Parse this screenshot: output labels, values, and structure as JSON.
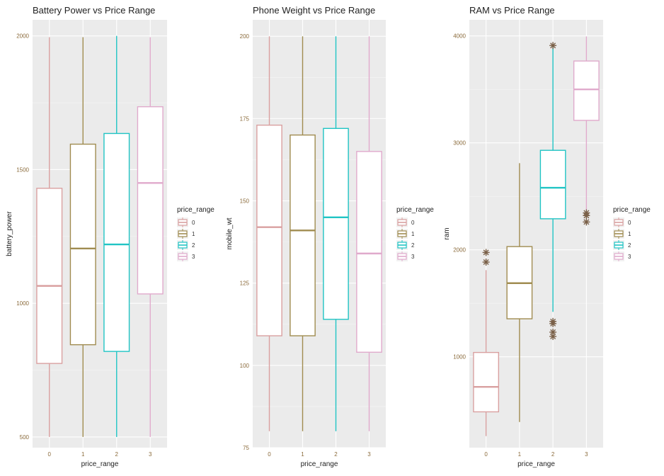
{
  "chart_data": [
    {
      "type": "boxplot",
      "title": "Battery Power vs Price Range",
      "xlabel": "price_range",
      "ylabel": "battery_power",
      "categories": [
        "0",
        "1",
        "2",
        "3"
      ],
      "ylim": [
        460,
        2060
      ],
      "yticks": [
        500,
        1000,
        1500,
        2000
      ],
      "legend": {
        "title": "price_range",
        "labels": [
          "0",
          "1",
          "2",
          "3"
        ],
        "placement": "right"
      },
      "colors": [
        "#d9a0a0",
        "#a08c50",
        "#20c4c4",
        "#e0aacc"
      ],
      "boxes": [
        {
          "category": "0",
          "min": 500,
          "q1": 775,
          "median": 1065,
          "q3": 1430,
          "max": 1995,
          "outliers": []
        },
        {
          "category": "1",
          "min": 500,
          "q1": 845,
          "median": 1205,
          "q3": 1595,
          "max": 1995,
          "outliers": []
        },
        {
          "category": "2",
          "min": 500,
          "q1": 820,
          "median": 1220,
          "q3": 1635,
          "max": 2000,
          "outliers": []
        },
        {
          "category": "3",
          "min": 500,
          "q1": 1035,
          "median": 1450,
          "q3": 1735,
          "max": 1995,
          "outliers": []
        }
      ]
    },
    {
      "type": "boxplot",
      "title": "Phone Weight vs Price Range",
      "xlabel": "price_range",
      "ylabel": "mobile_wt",
      "categories": [
        "0",
        "1",
        "2",
        "3"
      ],
      "ylim": [
        75,
        205
      ],
      "yticks": [
        75,
        100,
        125,
        150,
        175,
        200
      ],
      "legend": {
        "title": "price_range",
        "labels": [
          "0",
          "1",
          "2",
          "3"
        ],
        "placement": "right"
      },
      "colors": [
        "#d9a0a0",
        "#a08c50",
        "#20c4c4",
        "#e0aacc"
      ],
      "boxes": [
        {
          "category": "0",
          "min": 80,
          "q1": 109,
          "median": 142,
          "q3": 173,
          "max": 200,
          "outliers": []
        },
        {
          "category": "1",
          "min": 80,
          "q1": 109,
          "median": 141,
          "q3": 170,
          "max": 200,
          "outliers": []
        },
        {
          "category": "2",
          "min": 80,
          "q1": 114,
          "median": 145,
          "q3": 172,
          "max": 200,
          "outliers": []
        },
        {
          "category": "3",
          "min": 80,
          "q1": 104,
          "median": 134,
          "q3": 165,
          "max": 200,
          "outliers": []
        }
      ]
    },
    {
      "type": "boxplot",
      "title": "RAM vs Price Range",
      "xlabel": "price_range",
      "ylabel": "ram",
      "categories": [
        "0",
        "1",
        "2",
        "3"
      ],
      "ylim": [
        150,
        4150
      ],
      "yticks": [
        1000,
        2000,
        3000,
        4000
      ],
      "legend": {
        "title": "price_range",
        "labels": [
          "0",
          "1",
          "2",
          "3"
        ],
        "placement": "right"
      },
      "colors": [
        "#d9a0a0",
        "#a08c50",
        "#20c4c4",
        "#e0aacc"
      ],
      "boxes": [
        {
          "category": "0",
          "min": 258,
          "q1": 485,
          "median": 718,
          "q3": 1040,
          "max": 1810,
          "outliers": [
            1975,
            1885
          ]
        },
        {
          "category": "1",
          "min": 390,
          "q1": 1355,
          "median": 1688,
          "q3": 2030,
          "max": 2810,
          "outliers": []
        },
        {
          "category": "2",
          "min": 1420,
          "q1": 2290,
          "median": 2580,
          "q3": 2930,
          "max": 3910,
          "outliers": [
            3910,
            1330,
            1310,
            1230,
            1190
          ]
        },
        {
          "category": "3",
          "min": 2370,
          "q1": 3210,
          "median": 3500,
          "q3": 3765,
          "max": 3995,
          "outliers": [
            2345,
            2320,
            2260
          ]
        }
      ]
    }
  ]
}
